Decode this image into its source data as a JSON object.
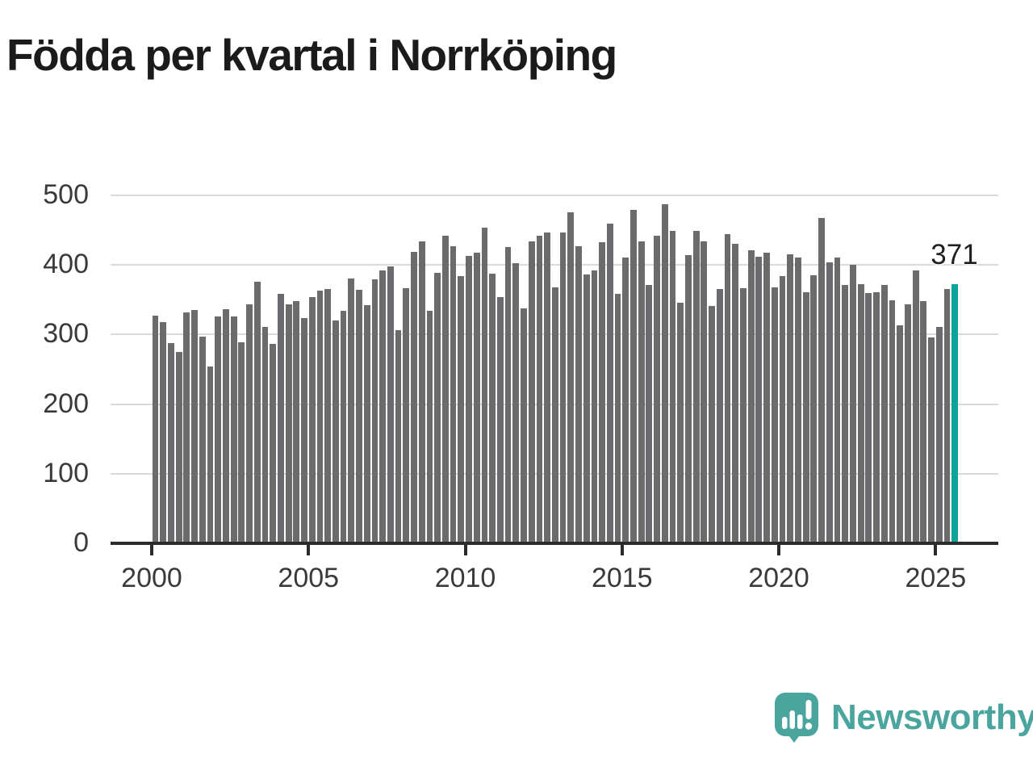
{
  "title": "Födda per kvartal i Norrköping",
  "chart_data": {
    "type": "bar",
    "x_unit": "quarter",
    "x_start": "2000 Q1",
    "x_end": "2025 Q3",
    "values": [
      326,
      317,
      287,
      274,
      331,
      334,
      296,
      253,
      325,
      335,
      325,
      288,
      342,
      375,
      310,
      285,
      357,
      342,
      347,
      322,
      353,
      362,
      364,
      319,
      333,
      379,
      363,
      341,
      378,
      391,
      397,
      305,
      366,
      418,
      433,
      333,
      387,
      441,
      426,
      383,
      412,
      416,
      453,
      386,
      353,
      425,
      401,
      336,
      433,
      441,
      445,
      367,
      445,
      474,
      426,
      385,
      391,
      431,
      458,
      357,
      409,
      478,
      433,
      370,
      441,
      486,
      448,
      344,
      413,
      448,
      433,
      340,
      364,
      443,
      429,
      365,
      420,
      411,
      416,
      367,
      383,
      414,
      409,
      360,
      384,
      466,
      402,
      409,
      370,
      399,
      371,
      358,
      360,
      370,
      348,
      312,
      342,
      391,
      347,
      295,
      310,
      364,
      371
    ],
    "highlight": {
      "index": 102,
      "quarter": "2025 Q3",
      "label": "371"
    },
    "ylim": [
      0,
      500
    ],
    "y_ticks": [
      0,
      100,
      200,
      300,
      400,
      500
    ],
    "x_ticks": [
      "2000",
      "2005",
      "2010",
      "2015",
      "2020",
      "2025"
    ],
    "grid": "horizontal",
    "legend": "none",
    "bar_color": "#6b6b6e",
    "highlight_color": "#0ca49a"
  },
  "branding": {
    "wordmark": "Newsworthy",
    "color": "#4ba59f",
    "icon": "speech-bubble-bar-chart-icon"
  }
}
